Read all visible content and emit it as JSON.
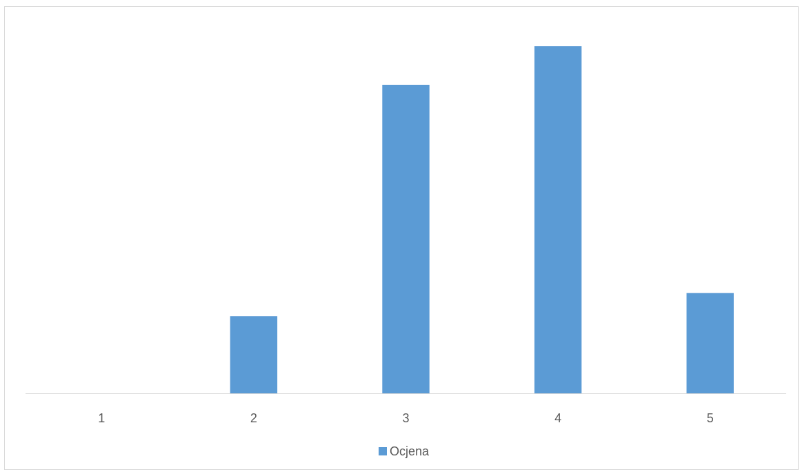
{
  "chart_data": {
    "type": "bar",
    "categories": [
      "1",
      "2",
      "3",
      "4",
      "5"
    ],
    "series": [
      {
        "name": "Ocjena",
        "values": [
          0,
          2,
          8,
          9,
          2.6
        ]
      }
    ],
    "ylim": [
      0,
      9
    ],
    "legend_position": "bottom",
    "grid": false,
    "colors": {
      "bar": "#5b9bd5",
      "axis": "#d9d9d9",
      "text": "#595959"
    }
  }
}
